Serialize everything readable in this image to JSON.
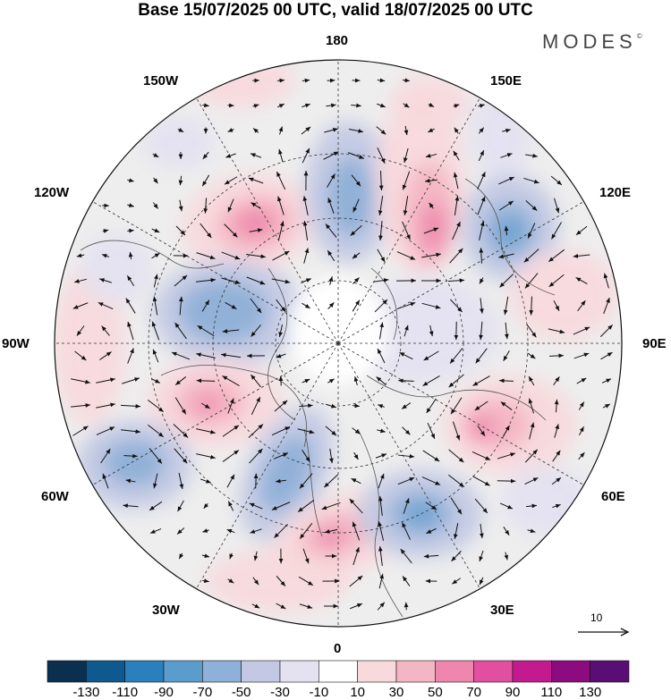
{
  "title": "Base 15/07/2025 00 UTC, valid 18/07/2025 00 UTC",
  "brand": {
    "name": "MODES",
    "mark": "©"
  },
  "longitude_labels": [
    "180",
    "150E",
    "120E",
    "90E",
    "60E",
    "30E",
    "0",
    "30W",
    "60W",
    "90W",
    "120W",
    "150W"
  ],
  "reference_vector": {
    "value": "10"
  },
  "colorbar": {
    "labels": [
      "-130",
      "-110",
      "-90",
      "-70",
      "-50",
      "-30",
      "-10",
      "10",
      "30",
      "50",
      "70",
      "90",
      "110",
      "130"
    ],
    "colors": [
      "#0b2f4f",
      "#0e5a8f",
      "#2a7fbd",
      "#5a9dcc",
      "#8fb0d8",
      "#c3c9e4",
      "#e4e2f0",
      "#ffffff",
      "#f8d9dc",
      "#f4b6c4",
      "#ee86ad",
      "#e24fa0",
      "#c31b8f",
      "#8c0b7e",
      "#5a0d74"
    ]
  },
  "palette": {
    "gray_fill": "#eeeeee",
    "ocean": "#ffffff",
    "coast": "#555555"
  }
}
